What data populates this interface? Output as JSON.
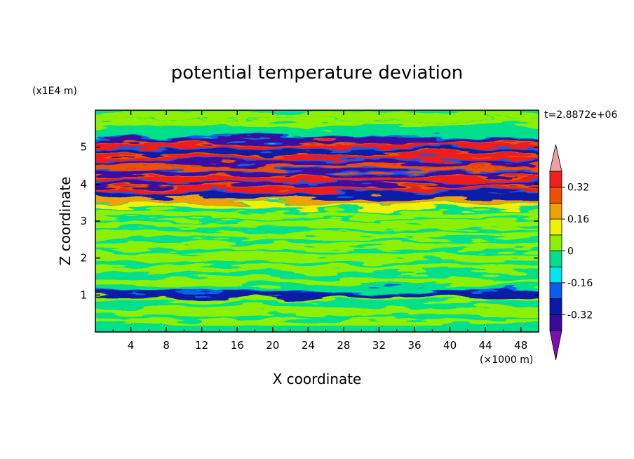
{
  "chart_data": {
    "type": "heatmap",
    "title": "potential temperature deviation",
    "xlabel": "X coordinate",
    "ylabel": "Z coordinate",
    "x_unit": "(×1000 m)",
    "y_unit": "(x1E4 m)",
    "time_label": "t=2.8872e+06",
    "xlim": [
      0,
      50
    ],
    "ylim": [
      0,
      6
    ],
    "x_ticks": [
      4,
      8,
      12,
      16,
      20,
      24,
      28,
      32,
      36,
      40,
      44,
      48
    ],
    "y_ticks": [
      1,
      2,
      3,
      4,
      5
    ],
    "colorbar": {
      "levels": [
        -0.4,
        -0.32,
        -0.24,
        -0.16,
        -0.08,
        0,
        0.08,
        0.16,
        0.24,
        0.32,
        0.4
      ],
      "labeled_ticks": [
        "0.32",
        "0.16",
        "0",
        "-0.16",
        "-0.32"
      ],
      "labeled_values": [
        0.32,
        0.16,
        0,
        -0.16,
        -0.32
      ],
      "colors": [
        "#7d0fb0",
        "#3a0aa0",
        "#0a1aa8",
        "#0a5cf0",
        "#00e6f0",
        "#00e08c",
        "#8cf000",
        "#f0f000",
        "#f0a000",
        "#f05000",
        "#f01e1e",
        "#f0a0a0"
      ]
    },
    "bands": [
      {
        "z": 5.15,
        "value": -0.36
      },
      {
        "z": 5.0,
        "value": 0.38
      },
      {
        "z": 4.85,
        "value": -0.3
      },
      {
        "z": 4.7,
        "value": 0.35
      },
      {
        "z": 4.55,
        "value": -0.38
      },
      {
        "z": 4.4,
        "value": 0.3
      },
      {
        "z": 4.25,
        "value": -0.34
      },
      {
        "z": 4.1,
        "value": 0.36
      },
      {
        "z": 3.95,
        "value": -0.36
      },
      {
        "z": 3.82,
        "value": 0.34
      },
      {
        "z": 3.68,
        "value": -0.3
      },
      {
        "z": 3.55,
        "value": 0.2
      },
      {
        "z": 3.4,
        "value": 0.08
      },
      {
        "z": 1.0,
        "value": -0.3
      }
    ]
  }
}
